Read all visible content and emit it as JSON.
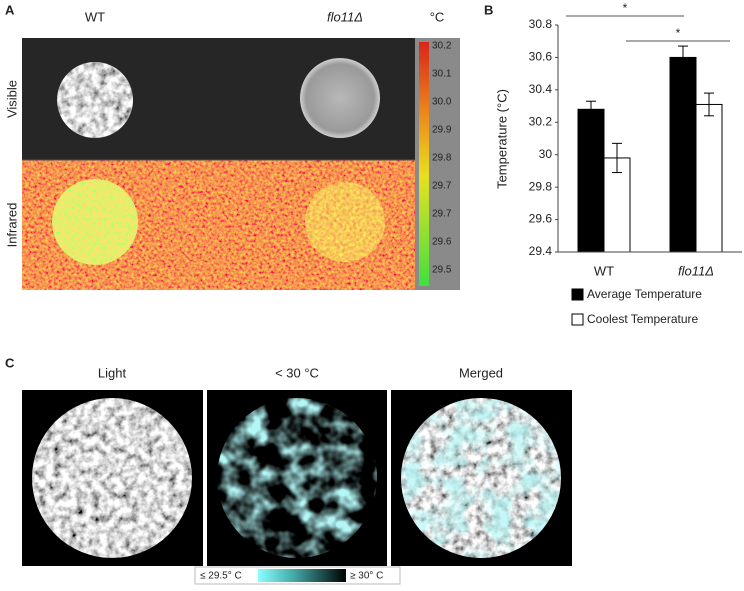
{
  "panel_a": {
    "label": "A",
    "columns": [
      "WT",
      "flo11Δ"
    ],
    "rows": [
      "Visible",
      "Infrared"
    ],
    "colorbar": {
      "unit": "°C",
      "labels": [
        "30.2",
        "30.1",
        "30.0",
        "29.9",
        "29.8",
        "29.7",
        "29.7",
        "29.6",
        "29.5"
      ]
    }
  },
  "chart_data": {
    "type": "bar",
    "panel_label": "B",
    "ylabel": "Temperature (°C)",
    "categories": [
      "WT",
      "flo11Δ"
    ],
    "series": [
      {
        "name": "Average Temperature",
        "color": "#000000",
        "values": [
          30.28,
          30.6
        ],
        "errors": [
          0.05,
          0.07
        ]
      },
      {
        "name": "Coolest Temperature",
        "color": "#ffffff",
        "values": [
          29.98,
          30.31
        ],
        "errors": [
          0.09,
          0.07
        ]
      }
    ],
    "ylim": [
      29.4,
      30.8
    ],
    "yticks": [
      29.4,
      29.6,
      29.8,
      30,
      30.2,
      30.4,
      30.6,
      30.8
    ],
    "annotations": [
      "*",
      "*"
    ]
  },
  "panel_c": {
    "label": "C",
    "titles": [
      "Light",
      "< 30 °C",
      "Merged"
    ],
    "scale": {
      "low": "≤ 29.5° C",
      "high": "≥ 30° C"
    }
  }
}
